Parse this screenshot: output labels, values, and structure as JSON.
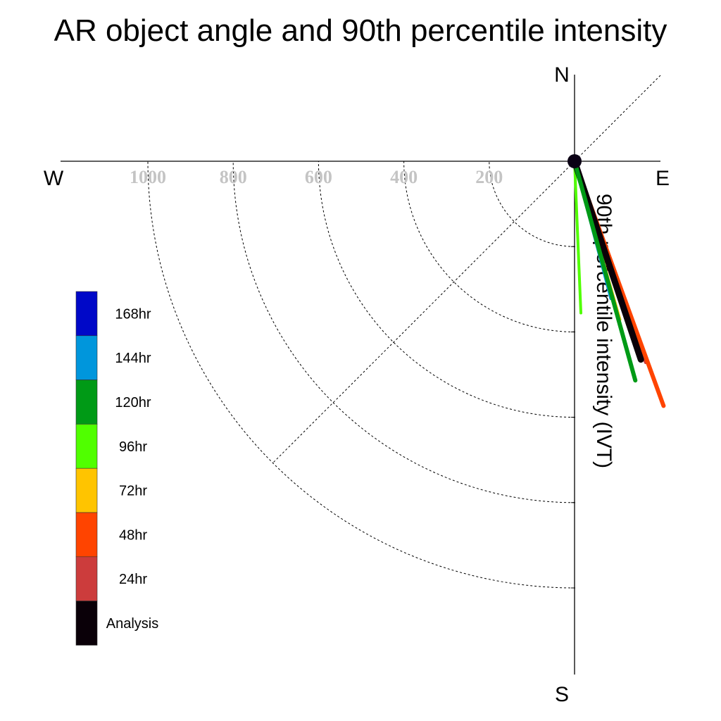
{
  "chart_data": {
    "type": "polar-vector",
    "title": "AR object angle and 90th percentile intensity",
    "radial_label": "90th percentile intensity (IVT)",
    "compass": {
      "north": "N",
      "south": "S",
      "east": "E",
      "west": "W"
    },
    "radial_ticks": [
      200,
      400,
      600,
      800,
      1000
    ],
    "radial_range": [
      0,
      1200
    ],
    "grid": true,
    "legend_position": "left",
    "series": [
      {
        "name": "168hr",
        "color": "#0008c8",
        "angle_deg": 0,
        "intensity": 0
      },
      {
        "name": "144hr",
        "color": "#0096dc",
        "angle_deg": 165.2,
        "intensity": 333
      },
      {
        "name": "120hr",
        "color": "#009a16",
        "angle_deg": 164.5,
        "intensity": 533
      },
      {
        "name": "96hr",
        "color": "#50ff00",
        "angle_deg": 177.6,
        "intensity": 356
      },
      {
        "name": "72hr",
        "color": "#ffc400",
        "angle_deg": 164.0,
        "intensity": 386
      },
      {
        "name": "48hr",
        "color": "#ff4400",
        "angle_deg": 160.0,
        "intensity": 610
      },
      {
        "name": "24hr",
        "color": "#cc3c3c",
        "angle_deg": 160.5,
        "intensity": 500
      },
      {
        "name": "Analysis",
        "color": "#0a0008",
        "angle_deg": 161.5,
        "intensity": 490
      }
    ]
  }
}
